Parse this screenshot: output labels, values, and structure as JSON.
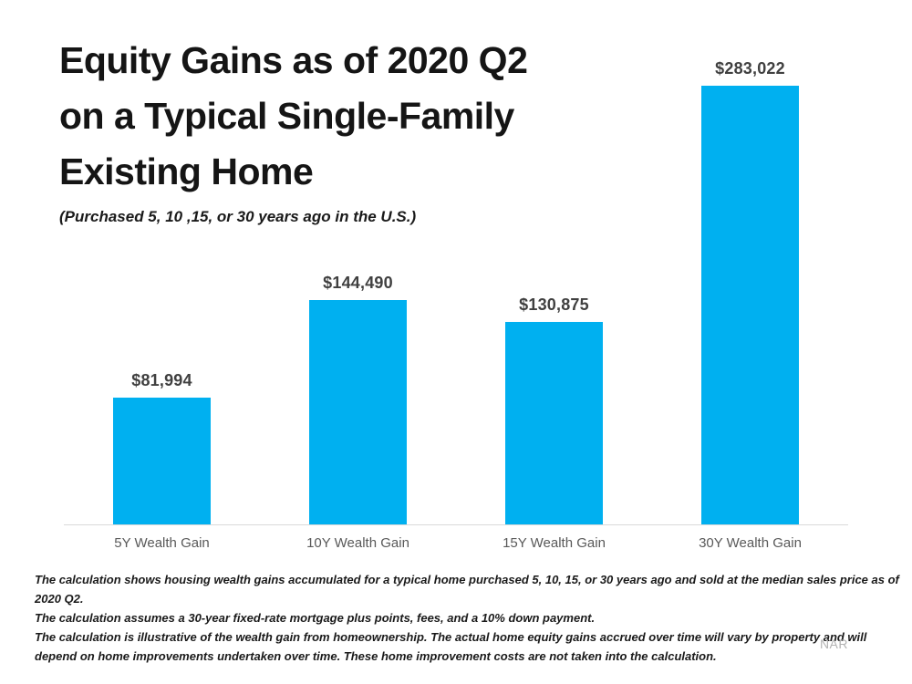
{
  "header": {
    "title_lines": [
      "Equity Gains as of 2020 Q2",
      "on a Typical Single-Family",
      "Existing Home"
    ],
    "subtitle": "(Purchased 5, 10 ,15, or 30 years ago in the U.S.)"
  },
  "chart_data": {
    "type": "bar",
    "title": "Equity Gains as of 2020 Q2 on a Typical Single-Family Existing Home",
    "subtitle": "(Purchased 5, 10 ,15, or 30 years ago in the U.S.)",
    "categories": [
      "5Y Wealth Gain",
      "10Y Wealth Gain",
      "15Y Wealth Gain",
      "30Y Wealth Gain"
    ],
    "values": [
      81994,
      144490,
      130875,
      283022
    ],
    "value_labels": [
      "$81,994",
      "$144,490",
      "$130,875",
      "$283,022"
    ],
    "bar_color": "#00b0f0",
    "value_label_color": "#404040",
    "category_label_color": "#595959",
    "axis_line_color": "#d9d9d9",
    "ylim": [
      0,
      283022
    ],
    "grid": false,
    "legend": false
  },
  "footer": {
    "lines": [
      "The calculation shows housing wealth gains accumulated for a typical home purchased 5, 10, 15, or 30 years ago and sold at the median sales price as of 2020 Q2.",
      "The calculation assumes a 30-year fixed-rate mortgage plus points, fees, and a 10% down payment.",
      "The calculation is illustrative of the wealth gain from homeownership. The actual home equity gains accrued over time will vary by property and will depend on home improvements undertaken over time. These home improvement costs are not taken into the calculation."
    ]
  },
  "source": {
    "label": "NAR"
  }
}
